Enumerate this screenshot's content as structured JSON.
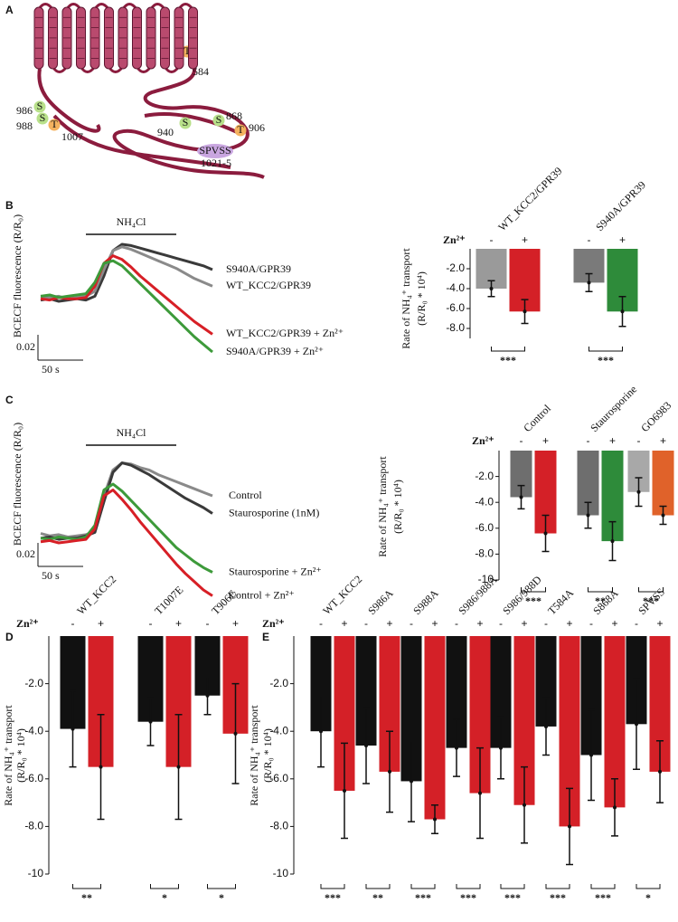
{
  "diagram": {
    "panel": "A",
    "sites": [
      {
        "residue": "T",
        "position": "584"
      },
      {
        "residue": "S",
        "position": "986"
      },
      {
        "residue": "S",
        "position": "988"
      },
      {
        "residue": "T",
        "position": "1007"
      },
      {
        "residue": "S",
        "position": "940"
      },
      {
        "residue": "S",
        "position": "868"
      },
      {
        "residue": "T",
        "position": "906"
      }
    ],
    "motif": {
      "label": "SPVSS",
      "position": "1021-5"
    }
  },
  "chart_data": [
    {
      "type": "line",
      "panel": "B",
      "ylabel": "BCECF fluorescence (R/R₀)",
      "annotation": {
        "text": "NH₄Cl",
        "x": [
          50,
          150
        ]
      },
      "scale_bar": {
        "x": {
          "value": 50,
          "label": "50 s"
        },
        "y": 0.02
      },
      "x": [
        0,
        10,
        20,
        30,
        40,
        50,
        60,
        70,
        80,
        90,
        100,
        110,
        120,
        130,
        140,
        150,
        160,
        170,
        180,
        190
      ],
      "series": [
        {
          "name": "S940A/GPR39",
          "color": "#3a3a3a",
          "values": [
            0.001,
            0.002,
            0,
            0.001,
            0.002,
            0.001,
            0.004,
            0.02,
            0.04,
            0.045,
            0.044,
            0.042,
            0.04,
            0.038,
            0.036,
            0.034,
            0.032,
            0.03,
            0.028,
            0.025
          ]
        },
        {
          "name": "WT_KCC2/GPR39",
          "color": "#8a8a8a",
          "values": [
            0.004,
            0.003,
            0.004,
            0.002,
            0.003,
            0.004,
            0.008,
            0.025,
            0.04,
            0.043,
            0.041,
            0.038,
            0.035,
            0.032,
            0.029,
            0.026,
            0.022,
            0.018,
            0.015,
            0.012
          ]
        },
        {
          "name": "WT_KCC2/GPR39 + Zn²⁺",
          "color": "#d71f26",
          "values": [
            0.002,
            0.001,
            0.003,
            0.002,
            0.002,
            0.003,
            0.012,
            0.03,
            0.036,
            0.033,
            0.027,
            0.02,
            0.014,
            0.008,
            0.002,
            -0.004,
            -0.01,
            -0.016,
            -0.021,
            -0.026
          ]
        },
        {
          "name": "S940A/GPR39 + Zn²⁺",
          "color": "#3d9a3a",
          "values": [
            0.004,
            0.005,
            0.003,
            0.004,
            0.005,
            0.006,
            0.015,
            0.03,
            0.032,
            0.028,
            0.021,
            0.014,
            0.007,
            0,
            -0.007,
            -0.014,
            -0.021,
            -0.028,
            -0.034,
            -0.04
          ]
        }
      ]
    },
    {
      "type": "bar",
      "ylabel": [
        "Rate of NH₄⁺ transport",
        "(R/R₀ * 10⁴)"
      ],
      "group_label": "Zn²⁺",
      "categories": [
        "WT_KCC2/GPR39",
        "S940A/GPR39"
      ],
      "series": [
        {
          "name": "-",
          "colors": [
            "#9a9a9a",
            "#7a7a7a"
          ],
          "values": [
            -4.0,
            -3.4
          ],
          "errors": [
            0.8,
            0.9
          ]
        },
        {
          "name": "+",
          "colors": [
            "#d42027",
            "#2e8b3a"
          ],
          "values": [
            -6.3,
            -6.3
          ],
          "errors": [
            1.2,
            1.5
          ]
        }
      ],
      "significance": [
        "***",
        "***"
      ],
      "ylim": [
        0,
        -9
      ],
      "yticks": [
        {
          "value": -2,
          "label": "-2.0"
        },
        {
          "value": -4,
          "label": "-4.0"
        },
        {
          "value": -6,
          "label": "-6.0"
        },
        {
          "value": -8,
          "label": "-8.0"
        }
      ]
    },
    {
      "type": "line",
      "panel": "C",
      "ylabel": "BCECF fluorescence (R/R₀)",
      "annotation": {
        "text": "NH₄Cl",
        "x": [
          50,
          150
        ]
      },
      "scale_bar": {
        "x": {
          "value": 50,
          "label": "50 s"
        },
        "y": 0.02
      },
      "x": [
        0,
        10,
        20,
        30,
        40,
        50,
        60,
        70,
        80,
        90,
        100,
        110,
        120,
        130,
        140,
        150,
        160,
        170,
        180,
        190
      ],
      "series": [
        {
          "name": "Control",
          "color": "#8a8a8a",
          "values": [
            0.008,
            0.006,
            0.007,
            0.005,
            0.006,
            0.007,
            0.01,
            0.04,
            0.062,
            0.068,
            0.067,
            0.064,
            0.062,
            0.058,
            0.055,
            0.052,
            0.049,
            0.046,
            0.043,
            0.04
          ]
        },
        {
          "name": "Staurosporine (1nM)",
          "color": "#3a3a3a",
          "values": [
            0.004,
            0.005,
            0.003,
            0.004,
            0.004,
            0.006,
            0.009,
            0.035,
            0.06,
            0.068,
            0.066,
            0.062,
            0.058,
            0.053,
            0.048,
            0.043,
            0.038,
            0.034,
            0.03,
            0.025
          ]
        },
        {
          "name": "Staurosporine + Zn²⁺",
          "color": "#3d9a3a",
          "values": [
            0.004,
            0.003,
            0.005,
            0.004,
            0.003,
            0.005,
            0.015,
            0.045,
            0.05,
            0.044,
            0.036,
            0.028,
            0.02,
            0.012,
            0.004,
            -0.004,
            -0.01,
            -0.016,
            -0.021,
            -0.025
          ]
        },
        {
          "name": "Control + Zn²⁺",
          "color": "#d71f26",
          "values": [
            0.001,
            0.002,
            0,
            0.001,
            0.002,
            0.003,
            0.012,
            0.04,
            0.045,
            0.037,
            0.028,
            0.018,
            0.009,
            0,
            -0.009,
            -0.018,
            -0.026,
            -0.033,
            -0.04,
            -0.045
          ]
        }
      ]
    },
    {
      "type": "bar",
      "ylabel": [
        "Rate of NH₄⁺ transport",
        "(R/R₀ * 10⁴)"
      ],
      "group_label": "Zn²⁺",
      "categories": [
        "Control",
        "Staurosporine",
        "GO6983"
      ],
      "series": [
        {
          "name": "-",
          "colors": [
            "#6e6e6e",
            "#6e6e6e",
            "#a8a8a8"
          ],
          "values": [
            -3.6,
            -5.0,
            -3.2
          ],
          "errors": [
            0.9,
            1.0,
            1.1
          ]
        },
        {
          "name": "+",
          "colors": [
            "#d42027",
            "#2e8b3a",
            "#e0622a"
          ],
          "values": [
            -6.4,
            -7.0,
            -5.0
          ],
          "errors": [
            1.4,
            1.5,
            0.7
          ]
        }
      ],
      "significance": [
        "***",
        "**",
        "***"
      ],
      "ylim": [
        0,
        -10
      ],
      "yticks": [
        {
          "value": -2,
          "label": "-2.0"
        },
        {
          "value": -4,
          "label": "-4.0"
        },
        {
          "value": -6,
          "label": "-6.0"
        },
        {
          "value": -8,
          "label": "-8.0"
        },
        -10
      ]
    },
    {
      "type": "bar",
      "panel": "D",
      "ylabel": [
        "Rate of NH₄⁺ transport",
        "(R/R₀ * 10⁴)"
      ],
      "group_label": "Zn²⁺",
      "categories": [
        "WT_KCC2",
        "T1007E",
        "T906E"
      ],
      "series": [
        {
          "name": "-",
          "colors": [
            "#111111",
            "#111111",
            "#111111"
          ],
          "values": [
            -3.9,
            -3.6,
            -2.5
          ],
          "errors": [
            1.6,
            1.0,
            0.8
          ]
        },
        {
          "name": "+",
          "colors": [
            "#d42027",
            "#d42027",
            "#d42027"
          ],
          "values": [
            -5.5,
            -5.5,
            -4.1
          ],
          "errors": [
            2.2,
            2.2,
            2.1
          ]
        }
      ],
      "significance": [
        "**",
        "*",
        "*"
      ],
      "ylim": [
        0,
        -10
      ],
      "yticks": [
        {
          "value": -2,
          "label": "-2.0"
        },
        {
          "value": -4,
          "label": "-4.0"
        },
        {
          "value": -6,
          "label": "-6.0"
        },
        {
          "value": -8,
          "label": "-8.0"
        },
        -10
      ]
    },
    {
      "type": "bar",
      "panel": "E",
      "ylabel": [
        "Rate of NH₄⁺ transport",
        "(R/R₀ * 10⁴)"
      ],
      "group_label": "Zn²⁺",
      "categories": [
        "WT_KCC2",
        "S986A",
        "S988A",
        "S986/988A",
        "S986/988D",
        "T584A",
        "S868A",
        "SPVSS"
      ],
      "series": [
        {
          "name": "-",
          "colors": [
            "#111111",
            "#111111",
            "#111111",
            "#111111",
            "#111111",
            "#111111",
            "#111111",
            "#111111"
          ],
          "values": [
            -4.0,
            -4.6,
            -6.1,
            -4.7,
            -4.7,
            -3.8,
            -5.0,
            -3.7
          ],
          "errors": [
            1.5,
            1.6,
            1.7,
            1.2,
            1.3,
            1.2,
            1.9,
            1.9
          ]
        },
        {
          "name": "+",
          "colors": [
            "#d42027",
            "#d42027",
            "#d42027",
            "#d42027",
            "#d42027",
            "#d42027",
            "#d42027",
            "#d42027"
          ],
          "values": [
            -6.5,
            -5.7,
            -7.7,
            -6.6,
            -7.1,
            -8.0,
            -7.2,
            -5.7
          ],
          "errors": [
            2.0,
            1.7,
            0.6,
            1.9,
            1.6,
            1.6,
            1.2,
            1.3
          ]
        }
      ],
      "significance": [
        "***",
        "**",
        "***",
        "***",
        "***",
        "***",
        "***",
        "*"
      ],
      "ylim": [
        0,
        -10
      ],
      "yticks": [
        {
          "value": -2,
          "label": "-2.0"
        },
        {
          "value": -4,
          "label": "-4.0"
        },
        {
          "value": -6,
          "label": "-6.0"
        },
        {
          "value": -8,
          "label": "-8.0"
        },
        -10
      ]
    }
  ]
}
